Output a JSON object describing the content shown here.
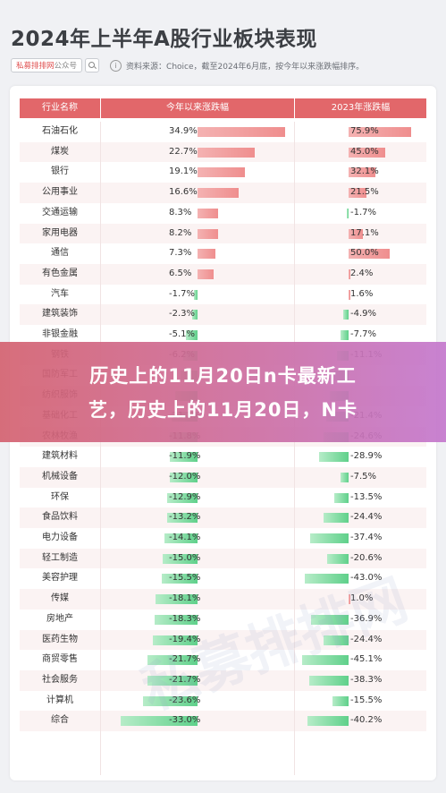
{
  "title": "2024年上半年A股行业板块表现",
  "badge": {
    "brand": "私募排排网",
    "rest": "公众号"
  },
  "source_note": "资料来源：Choice，截至2024年6月底，按今年以来涨跌幅排序。",
  "watermark": "私募排排网",
  "overlay": {
    "line1": "历史上的11月20日n卡最新工",
    "line2": "艺，历史上的11月20日，N卡"
  },
  "colors": {
    "header": "#e2676a",
    "positive": "#ef8e8e",
    "negative": "#5fd08a"
  },
  "chart_data": {
    "type": "table",
    "columns": [
      "行业名称",
      "今年以来涨跌幅",
      "2023年涨跌幅"
    ],
    "rows": [
      {
        "name": "石油石化",
        "ytd": 34.9,
        "ytd_label": "34.9%",
        "y2023": 75.9,
        "y2023_label": "75.9%"
      },
      {
        "name": "煤炭",
        "ytd": 22.7,
        "ytd_label": "22.7%",
        "y2023": 45.0,
        "y2023_label": "45.0%"
      },
      {
        "name": "银行",
        "ytd": 19.1,
        "ytd_label": "19.1%",
        "y2023": 32.1,
        "y2023_label": "32.1%"
      },
      {
        "name": "公用事业",
        "ytd": 16.6,
        "ytd_label": "16.6%",
        "y2023": 21.5,
        "y2023_label": "21.5%"
      },
      {
        "name": "交通运输",
        "ytd": 8.3,
        "ytd_label": "8.3%",
        "y2023": -1.7,
        "y2023_label": "-1.7%"
      },
      {
        "name": "家用电器",
        "ytd": 8.2,
        "ytd_label": "8.2%",
        "y2023": 17.1,
        "y2023_label": "17.1%"
      },
      {
        "name": "通信",
        "ytd": 7.3,
        "ytd_label": "7.3%",
        "y2023": 50.0,
        "y2023_label": "50.0%"
      },
      {
        "name": "有色金属",
        "ytd": 6.5,
        "ytd_label": "6.5%",
        "y2023": 2.4,
        "y2023_label": "2.4%"
      },
      {
        "name": "汽车",
        "ytd": -1.7,
        "ytd_label": "-1.7%",
        "y2023": 1.6,
        "y2023_label": "1.6%"
      },
      {
        "name": "建筑装饰",
        "ytd": -2.3,
        "ytd_label": "-2.3%",
        "y2023": -4.9,
        "y2023_label": "-4.9%"
      },
      {
        "name": "非银金融",
        "ytd": -5.1,
        "ytd_label": "-5.1%",
        "y2023": -7.7,
        "y2023_label": "-7.7%"
      },
      {
        "name": "钢铁",
        "ytd": -6.2,
        "ytd_label": "-6.2%",
        "y2023": -11.1,
        "y2023_label": "-11.1%"
      },
      {
        "name": "国防军工",
        "ytd": -7.5,
        "ytd_label": "",
        "y2023": -14.0,
        "y2023_label": ""
      },
      {
        "name": "纺织服饰",
        "ytd": -9.5,
        "ytd_label": "",
        "y2023": -18.0,
        "y2023_label": ""
      },
      {
        "name": "基础化工",
        "ytd": -11.2,
        "ytd_label": "-11.2%",
        "y2023": -21.4,
        "y2023_label": "-21.4%"
      },
      {
        "name": "农林牧渔",
        "ytd": -11.8,
        "ytd_label": "-11.8%",
        "y2023": -24.6,
        "y2023_label": "-24.6%"
      },
      {
        "name": "建筑材料",
        "ytd": -11.9,
        "ytd_label": "-11.9%",
        "y2023": -28.9,
        "y2023_label": "-28.9%"
      },
      {
        "name": "机械设备",
        "ytd": -12.0,
        "ytd_label": "-12.0%",
        "y2023": -7.5,
        "y2023_label": "-7.5%"
      },
      {
        "name": "环保",
        "ytd": -12.9,
        "ytd_label": "-12.9%",
        "y2023": -13.5,
        "y2023_label": "-13.5%"
      },
      {
        "name": "食品饮料",
        "ytd": -13.2,
        "ytd_label": "-13.2%",
        "y2023": -24.4,
        "y2023_label": "-24.4%"
      },
      {
        "name": "电力设备",
        "ytd": -14.1,
        "ytd_label": "-14.1%",
        "y2023": -37.4,
        "y2023_label": "-37.4%"
      },
      {
        "name": "轻工制造",
        "ytd": -15.0,
        "ytd_label": "-15.0%",
        "y2023": -20.6,
        "y2023_label": "-20.6%"
      },
      {
        "name": "美容护理",
        "ytd": -15.5,
        "ytd_label": "-15.5%",
        "y2023": -43.0,
        "y2023_label": "-43.0%"
      },
      {
        "name": "传媒",
        "ytd": -18.1,
        "ytd_label": "-18.1%",
        "y2023": 1.0,
        "y2023_label": "1.0%"
      },
      {
        "name": "房地产",
        "ytd": -18.3,
        "ytd_label": "-18.3%",
        "y2023": -36.9,
        "y2023_label": "-36.9%"
      },
      {
        "name": "医药生物",
        "ytd": -19.4,
        "ytd_label": "-19.4%",
        "y2023": -24.4,
        "y2023_label": "-24.4%"
      },
      {
        "name": "商贸零售",
        "ytd": -21.7,
        "ytd_label": "-21.7%",
        "y2023": -45.1,
        "y2023_label": "-45.1%"
      },
      {
        "name": "社会服务",
        "ytd": -21.7,
        "ytd_label": "-21.7%",
        "y2023": -38.3,
        "y2023_label": "-38.3%"
      },
      {
        "name": "计算机",
        "ytd": -23.6,
        "ytd_label": "-23.6%",
        "y2023": -15.5,
        "y2023_label": "-15.5%"
      },
      {
        "name": "综合",
        "ytd": -33.0,
        "ytd_label": "-33.0%",
        "y2023": -40.2,
        "y2023_label": "-40.2%"
      }
    ]
  }
}
